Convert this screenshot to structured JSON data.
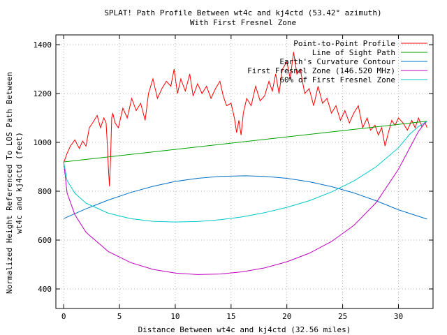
{
  "chart_data": {
    "type": "line",
    "title": "SPLAT! Path Profile Between wt4c and kj4ctd (53.42° azimuth)",
    "subtitle": "With First Fresnel Zone",
    "xlabel": "Distance Between wt4c and kj4ctd (32.56 miles)",
    "ylabel_lines": [
      "Normalized Height Referenced To LOS Path Between",
      "wt4c and kj4ctd (feet)"
    ],
    "xlim": [
      -0.7,
      33.1
    ],
    "ylim": [
      320,
      1440
    ],
    "x_ticks": [
      0,
      5,
      10,
      15,
      20,
      25,
      30
    ],
    "y_ticks": [
      400,
      600,
      800,
      1000,
      1200,
      1400
    ],
    "grid": true,
    "legend_position": "top-right",
    "series": [
      {
        "name": "Point-to-Point Profile",
        "color": "#ff0000",
        "x": [
          0.0,
          0.3,
          0.6,
          1.0,
          1.4,
          1.7,
          2.0,
          2.3,
          2.6,
          3.0,
          3.3,
          3.6,
          3.8,
          3.9,
          4.0,
          4.1,
          4.2,
          4.3,
          4.4,
          4.6,
          4.9,
          5.3,
          5.7,
          6.1,
          6.5,
          6.9,
          7.3,
          7.6,
          8.0,
          8.4,
          8.8,
          9.2,
          9.6,
          9.9,
          10.2,
          10.5,
          10.9,
          11.3,
          11.6,
          12.0,
          12.4,
          12.8,
          13.2,
          13.6,
          14.0,
          14.3,
          14.6,
          15.0,
          15.3,
          15.5,
          15.7,
          15.9,
          16.1,
          16.4,
          16.8,
          17.2,
          17.6,
          18.0,
          18.4,
          18.7,
          19.0,
          19.3,
          19.6,
          20.0,
          20.3,
          20.6,
          20.9,
          21.2,
          21.6,
          22.0,
          22.4,
          22.8,
          23.2,
          23.6,
          24.0,
          24.4,
          24.8,
          25.2,
          25.6,
          26.0,
          26.4,
          26.8,
          27.2,
          27.5,
          27.9,
          28.2,
          28.5,
          28.8,
          29.1,
          29.4,
          29.7,
          30.0,
          30.4,
          30.8,
          31.2,
          31.5,
          31.8,
          32.1,
          32.4,
          32.56
        ],
        "y": [
          917,
          955,
          985,
          1010,
          975,
          1005,
          985,
          1060,
          1080,
          1110,
          1060,
          1100,
          1080,
          1000,
          900,
          820,
          930,
          1100,
          1120,
          1080,
          1060,
          1140,
          1100,
          1180,
          1130,
          1160,
          1090,
          1200,
          1260,
          1180,
          1220,
          1250,
          1230,
          1300,
          1200,
          1260,
          1210,
          1280,
          1190,
          1240,
          1200,
          1230,
          1180,
          1220,
          1250,
          1190,
          1150,
          1160,
          1100,
          1040,
          1090,
          1030,
          1120,
          1180,
          1150,
          1230,
          1170,
          1190,
          1250,
          1210,
          1280,
          1200,
          1300,
          1330,
          1260,
          1370,
          1280,
          1300,
          1200,
          1220,
          1150,
          1230,
          1160,
          1180,
          1120,
          1150,
          1090,
          1130,
          1080,
          1120,
          1150,
          1060,
          1100,
          1050,
          1070,
          1030,
          1060,
          985,
          1040,
          1090,
          1070,
          1100,
          1080,
          1050,
          1090,
          1060,
          1100,
          1065,
          1080,
          1060
        ]
      },
      {
        "name": "Line of Sight Path",
        "color": "#00a000",
        "x": [
          0.0,
          32.56
        ],
        "y": [
          920,
          1087
        ]
      },
      {
        "name": "Earth's Curvature Contour",
        "color": "#0070c8",
        "x": [
          0.0,
          2,
          4,
          6,
          8,
          10,
          12,
          14,
          16.28,
          18,
          20,
          22,
          24,
          26,
          28,
          30,
          32.56
        ],
        "y": [
          688,
          728,
          764,
          795,
          820,
          840,
          853,
          861,
          863,
          861,
          853,
          839,
          819,
          793,
          761,
          724,
          686
        ]
      },
      {
        "name": "First Fresnel Zone (146.520 MHz)",
        "color": "#c000c0",
        "x": [
          0.0,
          0.3,
          1,
          2,
          4,
          6,
          8,
          10,
          12,
          14,
          16,
          18,
          20,
          22,
          24,
          26,
          28,
          30,
          31,
          31.8,
          32.3,
          32.56
        ],
        "y": [
          920,
          793,
          704,
          632,
          553,
          508,
          480,
          465,
          459,
          461,
          470,
          486,
          511,
          546,
          594,
          660,
          753,
          890,
          976,
          1045,
          1075,
          1087
        ]
      },
      {
        "name": "60% of First Fresnel Zone",
        "color": "#00c8c8",
        "x": [
          0.0,
          0.3,
          1,
          2,
          4,
          6,
          8,
          10,
          12,
          14,
          16,
          18,
          20,
          22,
          24,
          26,
          28,
          30,
          31,
          31.8,
          32.3,
          32.56
        ],
        "y": [
          920,
          844,
          792,
          751,
          710,
          688,
          677,
          674,
          676,
          683,
          695,
          712,
          734,
          761,
          797,
          842,
          900,
          978,
          1033,
          1065,
          1080,
          1087
        ]
      }
    ]
  }
}
